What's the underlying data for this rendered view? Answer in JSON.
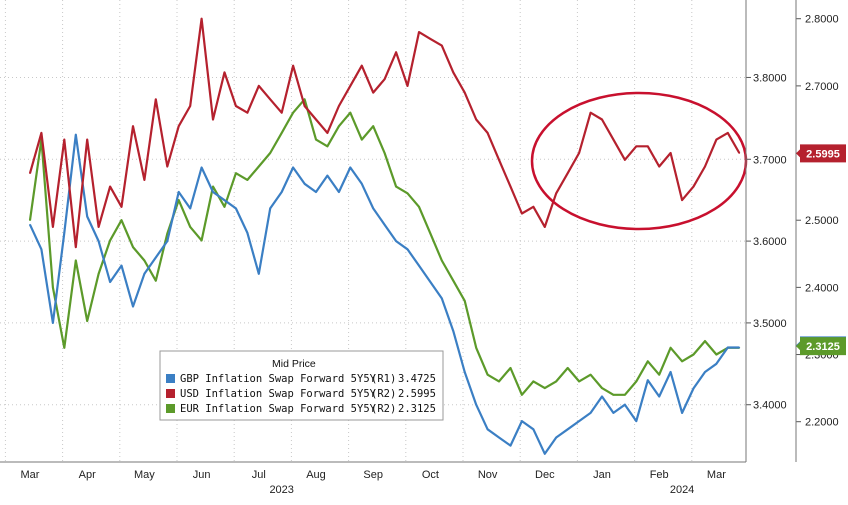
{
  "chart_data": {
    "type": "line",
    "x_axis": {
      "months": [
        "Mar",
        "Apr",
        "May",
        "Jun",
        "Jul",
        "Aug",
        "Sep",
        "Oct",
        "Nov",
        "Dec",
        "Jan",
        "Feb",
        "Mar"
      ],
      "year_labels": [
        "2023",
        "2024"
      ],
      "range": [
        "2023-03",
        "2024-03"
      ]
    },
    "y_axis_r1": {
      "ticks": [
        "3.8000",
        "3.7000",
        "3.6000",
        "3.5000",
        "3.4000"
      ],
      "ylim": [
        3.33,
        3.88
      ]
    },
    "y_axis_r2": {
      "ticks": [
        "2.8000",
        "2.7000",
        "2.6000",
        "2.5000",
        "2.4000",
        "2.3000",
        "2.2000"
      ],
      "ylim": [
        2.14,
        2.81
      ]
    },
    "grid": true,
    "legend": {
      "title": "Mid Price",
      "placement": "bottom-left",
      "entries": [
        {
          "label": "GBP Inflation Swap Forward 5Y5Y",
          "axis": "(R1)",
          "value": "3.4725",
          "color": "#3b7fc4"
        },
        {
          "label": "USD Inflation Swap Forward 5Y5Y",
          "axis": "(R2)",
          "value": "2.5995",
          "color": "#b5212e"
        },
        {
          "label": "EUR Inflation Swap Forward 5Y5Y",
          "axis": "(R2)",
          "value": "2.3125",
          "color": "#5c9a2a"
        }
      ]
    },
    "last_value_badges": [
      {
        "text": "2.5995",
        "color": "#b5212e"
      },
      {
        "text": "3.4725",
        "color": "#3b7fc4"
      },
      {
        "text": "2.3125",
        "color": "#5c9a2a"
      }
    ],
    "annotation": "red ellipse highlighting USD series Dec 2023 - Mar 2024",
    "series": [
      {
        "name": "USD Inflation Swap Forward 5Y5Y",
        "axis": "R2",
        "color": "#b5212e",
        "x": [
          0,
          0.2,
          0.4,
          0.6,
          0.8,
          1.0,
          1.2,
          1.4,
          1.6,
          1.8,
          2.0,
          2.2,
          2.4,
          2.6,
          2.8,
          3.0,
          3.2,
          3.4,
          3.6,
          3.8,
          4.0,
          4.2,
          4.4,
          4.6,
          4.8,
          5.0,
          5.2,
          5.4,
          5.6,
          5.8,
          6.0,
          6.2,
          6.4,
          6.6,
          6.8,
          7.0,
          7.2,
          7.4,
          7.6,
          7.8,
          8.0,
          8.2,
          8.4,
          8.6,
          8.8,
          9.0,
          9.2,
          9.4,
          9.6,
          9.8,
          10.0,
          10.2,
          10.4,
          10.6,
          10.8,
          11.0,
          11.2,
          11.4,
          11.6,
          11.8,
          12.0,
          12.2,
          12.4
        ],
        "values": [
          2.57,
          2.63,
          2.49,
          2.62,
          2.46,
          2.62,
          2.49,
          2.55,
          2.52,
          2.64,
          2.56,
          2.68,
          2.58,
          2.64,
          2.67,
          2.8,
          2.65,
          2.72,
          2.67,
          2.66,
          2.7,
          2.68,
          2.66,
          2.73,
          2.67,
          2.65,
          2.63,
          2.67,
          2.7,
          2.73,
          2.69,
          2.71,
          2.75,
          2.7,
          2.78,
          2.77,
          2.76,
          2.72,
          2.69,
          2.65,
          2.63,
          2.59,
          2.55,
          2.51,
          2.52,
          2.49,
          2.54,
          2.57,
          2.6,
          2.66,
          2.65,
          2.62,
          2.59,
          2.61,
          2.61,
          2.58,
          2.6,
          2.53,
          2.55,
          2.58,
          2.62,
          2.63,
          2.6
        ]
      },
      {
        "name": "GBP Inflation Swap Forward 5Y5Y",
        "axis": "R1",
        "color": "#3b7fc4",
        "x": [
          0,
          0.2,
          0.4,
          0.6,
          0.8,
          1.0,
          1.2,
          1.4,
          1.6,
          1.8,
          2.0,
          2.2,
          2.4,
          2.6,
          2.8,
          3.0,
          3.2,
          3.4,
          3.6,
          3.8,
          4.0,
          4.2,
          4.4,
          4.6,
          4.8,
          5.0,
          5.2,
          5.4,
          5.6,
          5.8,
          6.0,
          6.2,
          6.4,
          6.6,
          6.8,
          7.0,
          7.2,
          7.4,
          7.6,
          7.8,
          8.0,
          8.2,
          8.4,
          8.6,
          8.8,
          9.0,
          9.2,
          9.4,
          9.6,
          9.8,
          10.0,
          10.2,
          10.4,
          10.6,
          10.8,
          11.0,
          11.2,
          11.4,
          11.6,
          11.8,
          12.0,
          12.2,
          12.4
        ],
        "values": [
          3.62,
          3.59,
          3.5,
          3.61,
          3.73,
          3.63,
          3.6,
          3.55,
          3.57,
          3.52,
          3.56,
          3.58,
          3.6,
          3.66,
          3.64,
          3.69,
          3.66,
          3.65,
          3.64,
          3.61,
          3.56,
          3.64,
          3.66,
          3.69,
          3.67,
          3.66,
          3.68,
          3.66,
          3.69,
          3.67,
          3.64,
          3.62,
          3.6,
          3.59,
          3.57,
          3.55,
          3.53,
          3.49,
          3.44,
          3.4,
          3.37,
          3.36,
          3.35,
          3.38,
          3.37,
          3.34,
          3.36,
          3.37,
          3.38,
          3.39,
          3.41,
          3.39,
          3.4,
          3.38,
          3.43,
          3.41,
          3.44,
          3.39,
          3.42,
          3.44,
          3.45,
          3.47,
          3.47
        ]
      },
      {
        "name": "EUR Inflation Swap Forward 5Y5Y",
        "axis": "R2",
        "color": "#5c9a2a",
        "x": [
          0,
          0.2,
          0.4,
          0.6,
          0.8,
          1.0,
          1.2,
          1.4,
          1.6,
          1.8,
          2.0,
          2.2,
          2.4,
          2.6,
          2.8,
          3.0,
          3.2,
          3.4,
          3.6,
          3.8,
          4.0,
          4.2,
          4.4,
          4.6,
          4.8,
          5.0,
          5.2,
          5.4,
          5.6,
          5.8,
          6.0,
          6.2,
          6.4,
          6.6,
          6.8,
          7.0,
          7.2,
          7.4,
          7.6,
          7.8,
          8.0,
          8.2,
          8.4,
          8.6,
          8.8,
          9.0,
          9.2,
          9.4,
          9.6,
          9.8,
          10.0,
          10.2,
          10.4,
          10.6,
          10.8,
          11.0,
          11.2,
          11.4,
          11.6,
          11.8,
          12.0,
          12.2,
          12.4
        ],
        "values": [
          2.5,
          2.62,
          2.4,
          2.31,
          2.44,
          2.35,
          2.42,
          2.47,
          2.5,
          2.46,
          2.44,
          2.41,
          2.48,
          2.53,
          2.49,
          2.47,
          2.55,
          2.52,
          2.57,
          2.56,
          2.58,
          2.6,
          2.63,
          2.66,
          2.68,
          2.62,
          2.61,
          2.64,
          2.66,
          2.62,
          2.64,
          2.6,
          2.55,
          2.54,
          2.52,
          2.48,
          2.44,
          2.41,
          2.38,
          2.31,
          2.27,
          2.26,
          2.28,
          2.24,
          2.26,
          2.25,
          2.26,
          2.28,
          2.26,
          2.27,
          2.25,
          2.24,
          2.24,
          2.26,
          2.29,
          2.27,
          2.31,
          2.29,
          2.3,
          2.32,
          2.3,
          2.31,
          2.31
        ]
      }
    ]
  }
}
